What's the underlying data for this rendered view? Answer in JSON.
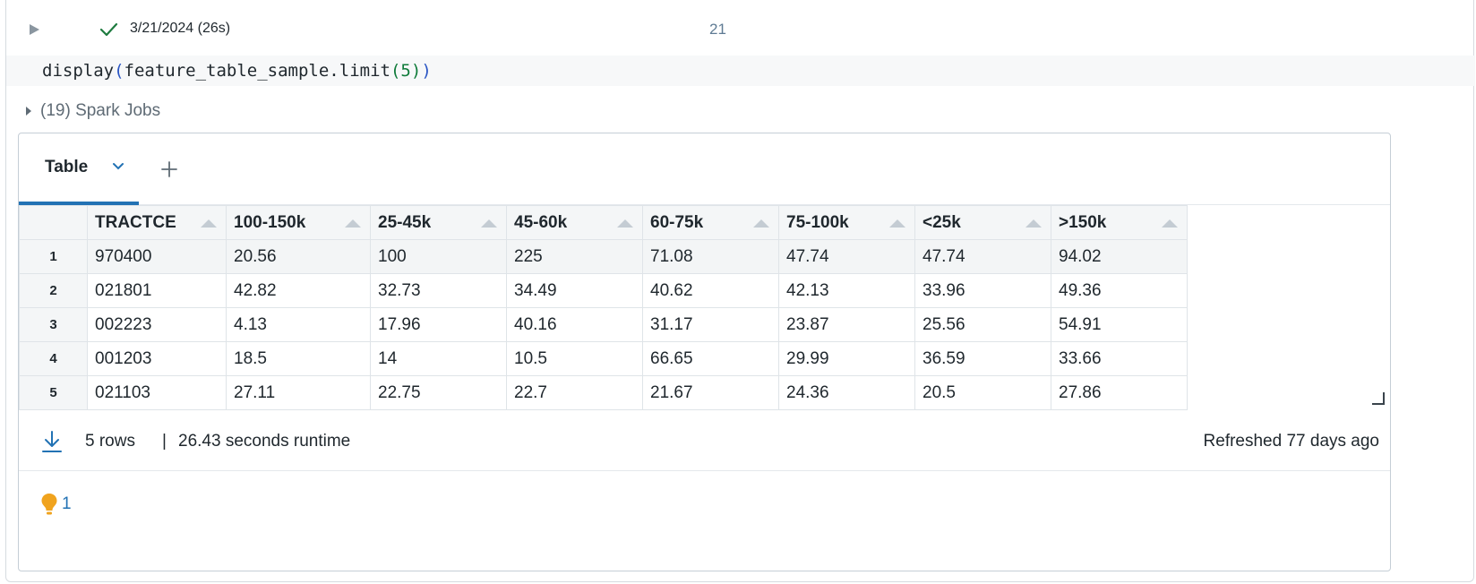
{
  "cell": {
    "run_date": "3/21/2024 (26s)",
    "cell_number": "21",
    "code": {
      "fn": "display",
      "open_paren": "(",
      "inner": "feature_table_sample.limit",
      "inner_open": "(",
      "arg": "5",
      "inner_close": ")",
      "close_paren": ")"
    },
    "spark_jobs_label": "(19) Spark Jobs"
  },
  "output": {
    "tab_label": "Table",
    "table": {
      "columns": [
        "TRACTCE",
        "100-150k",
        "25-45k",
        "45-60k",
        "60-75k",
        "75-100k",
        "<25k",
        ">150k"
      ],
      "rows": [
        {
          "n": "1",
          "cells": [
            "970400",
            "20.56",
            "100",
            "225",
            "71.08",
            "47.74",
            "47.74",
            "94.02"
          ]
        },
        {
          "n": "2",
          "cells": [
            "021801",
            "42.82",
            "32.73",
            "34.49",
            "40.62",
            "42.13",
            "33.96",
            "49.36"
          ]
        },
        {
          "n": "3",
          "cells": [
            "002223",
            "4.13",
            "17.96",
            "40.16",
            "31.17",
            "23.87",
            "25.56",
            "54.91"
          ]
        },
        {
          "n": "4",
          "cells": [
            "001203",
            "18.5",
            "14",
            "10.5",
            "66.65",
            "29.99",
            "36.59",
            "33.66"
          ]
        },
        {
          "n": "5",
          "cells": [
            "021103",
            "27.11",
            "22.75",
            "22.7",
            "21.67",
            "24.36",
            "20.5",
            "27.86"
          ]
        }
      ]
    },
    "footer": {
      "row_count": "5 rows",
      "separator": "|",
      "runtime": "26.43 seconds runtime",
      "refreshed": "Refreshed 77 days ago"
    },
    "insights_count": "1"
  },
  "colors": {
    "accent": "#2272b4",
    "success": "#1e7b3f",
    "bulb": "#f0a31e"
  }
}
